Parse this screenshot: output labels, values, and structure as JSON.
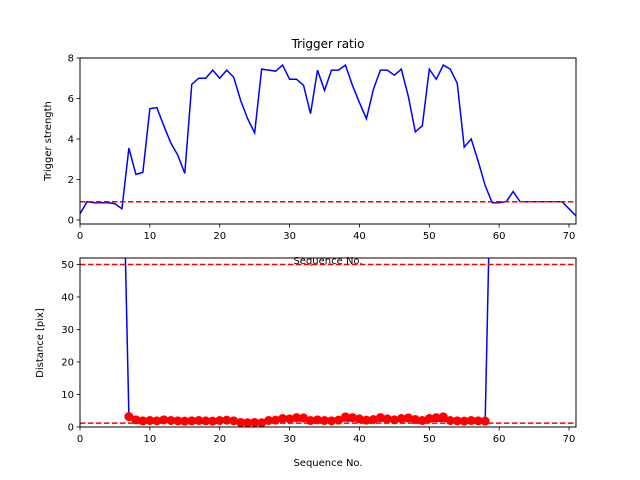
{
  "chart_data": [
    {
      "type": "line",
      "title": "Trigger ratio",
      "xlabel": "Sequence No.",
      "ylabel": "Trigger strength",
      "xlim": [
        0,
        71
      ],
      "ylim": [
        -0.2,
        8
      ],
      "xticks": [
        "0",
        "10",
        "20",
        "30",
        "40",
        "50",
        "60",
        "70"
      ],
      "yticks": [
        "0",
        "2",
        "4",
        "6",
        "8"
      ],
      "grid": false,
      "series": [
        {
          "color": "#0000ff",
          "style": "solid",
          "x": [
            0,
            1,
            2,
            3,
            4,
            5,
            6,
            7,
            8,
            9,
            10,
            11,
            12,
            13,
            14,
            15,
            16,
            17,
            18,
            19,
            20,
            21,
            22,
            23,
            24,
            25,
            26,
            27,
            28,
            29,
            30,
            31,
            32,
            33,
            34,
            35,
            36,
            37,
            38,
            39,
            40,
            41,
            42,
            43,
            44,
            45,
            46,
            47,
            48,
            49,
            50,
            51,
            52,
            53,
            54,
            55,
            56,
            57,
            58,
            59,
            60,
            61,
            62,
            63,
            64,
            65,
            66,
            67,
            68,
            69,
            70,
            71
          ],
          "values": [
            0.3,
            0.9,
            0.85,
            0.85,
            0.85,
            0.8,
            0.55,
            3.55,
            2.25,
            2.35,
            5.5,
            5.55,
            4.65,
            3.8,
            3.2,
            2.3,
            6.7,
            7.0,
            7.0,
            7.4,
            7.0,
            7.4,
            7.05,
            5.9,
            5.0,
            4.3,
            7.45,
            7.4,
            7.35,
            7.65,
            6.95,
            6.95,
            6.65,
            5.25,
            7.4,
            6.4,
            7.4,
            7.4,
            7.65,
            6.65,
            5.8,
            5.0,
            6.45,
            7.4,
            7.4,
            7.15,
            7.45,
            6.1,
            4.35,
            4.65,
            7.45,
            6.95,
            7.65,
            7.45,
            6.75,
            3.6,
            4.0,
            2.9,
            1.7,
            0.85,
            0.85,
            0.9,
            1.4,
            0.9,
            0.9,
            0.9,
            0.9,
            0.9,
            0.9,
            0.9,
            0.55,
            0.2
          ]
        },
        {
          "color": "#ff0000",
          "style": "dashed",
          "x": [
            0,
            71
          ],
          "values": [
            0.9,
            0.9
          ]
        }
      ]
    },
    {
      "type": "scatter",
      "title": "",
      "xlabel": "Sequence No.",
      "ylabel": "Distance [pix]",
      "xlim": [
        0,
        71
      ],
      "ylim": [
        0,
        52
      ],
      "xticks": [
        "0",
        "10",
        "20",
        "30",
        "40",
        "50",
        "60",
        "70"
      ],
      "yticks": [
        "0",
        "10",
        "20",
        "30",
        "40",
        "50"
      ],
      "grid": false,
      "series": [
        {
          "color": "#0000ff",
          "style": "solid",
          "x": [
            6.5,
            7,
            7.5,
            57.5,
            58,
            58.5
          ],
          "values": [
            52,
            3.2,
            2.0,
            1.8,
            2.0,
            52
          ]
        },
        {
          "color": "#ff0000",
          "style": "markers",
          "x": [
            7,
            8,
            9,
            10,
            11,
            12,
            13,
            14,
            15,
            16,
            17,
            18,
            19,
            20,
            21,
            22,
            23,
            24,
            25,
            26,
            27,
            28,
            29,
            30,
            31,
            32,
            33,
            34,
            35,
            36,
            37,
            38,
            39,
            40,
            41,
            42,
            43,
            44,
            45,
            46,
            47,
            48,
            49,
            50,
            51,
            52,
            53,
            54,
            55,
            56,
            57,
            58
          ],
          "values": [
            3.2,
            2.2,
            1.9,
            2.0,
            1.9,
            2.2,
            2.0,
            1.9,
            1.8,
            1.9,
            2.0,
            1.9,
            1.8,
            2.0,
            2.1,
            1.9,
            1.4,
            1.3,
            1.4,
            1.3,
            2.0,
            2.1,
            2.6,
            2.5,
            2.9,
            2.8,
            2.0,
            2.2,
            2.0,
            1.9,
            2.1,
            3.1,
            2.9,
            2.5,
            2.1,
            2.3,
            2.9,
            2.5,
            2.2,
            2.6,
            2.8,
            2.3,
            2.0,
            2.6,
            2.9,
            3.1,
            2.0,
            1.9,
            1.8,
            2.0,
            1.9,
            1.8
          ]
        },
        {
          "color": "#ff0000",
          "style": "dashed",
          "x": [
            0,
            71
          ],
          "values": [
            50,
            50
          ]
        },
        {
          "color": "#ff0000",
          "style": "dashed",
          "x": [
            0,
            71
          ],
          "values": [
            1.2,
            1.2
          ]
        }
      ]
    }
  ]
}
